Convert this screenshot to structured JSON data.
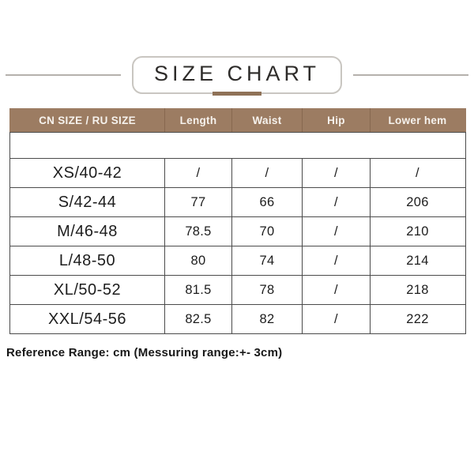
{
  "chart_data": {
    "type": "table",
    "title": "SIZE CHART",
    "columns": [
      "CN SIZE / RU SIZE",
      "Length",
      "Waist",
      "Hip",
      "Lower hem"
    ],
    "rows": [
      [
        "XS/40-42",
        "/",
        "/",
        "/",
        "/"
      ],
      [
        "S/42-44",
        "77",
        "66",
        "/",
        "206"
      ],
      [
        "M/46-48",
        "78.5",
        "70",
        "/",
        "210"
      ],
      [
        "L/48-50",
        "80",
        "74",
        "/",
        "214"
      ],
      [
        "XL/50-52",
        "81.5",
        "78",
        "/",
        "218"
      ],
      [
        "XXL/54-56",
        "82.5",
        "82",
        "/",
        "222"
      ]
    ],
    "note": "Reference Range: cm (Messuring range:+- 3cm)",
    "unit": "cm"
  },
  "colors": {
    "header_bg": "#9c7c62",
    "header_text": "#f6f2ed",
    "accent_bar": "#8f7257",
    "grid_border": "#4b4b4b",
    "title_side_lines": "#b5b1ac"
  }
}
